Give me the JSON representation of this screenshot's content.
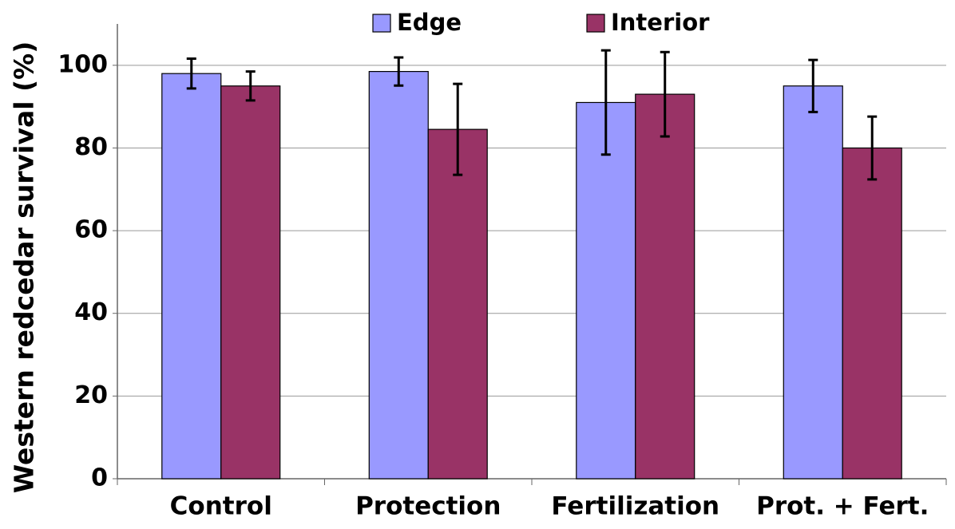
{
  "chart_data": {
    "type": "bar",
    "y_label": "Western redcedar survival (%)",
    "categories": [
      "Control",
      "Protection",
      "Fertilization",
      "Prot. + Fert."
    ],
    "series": [
      {
        "name": "Edge",
        "color": "#9999ff",
        "values": [
          98,
          98.5,
          91,
          95
        ],
        "errors": [
          3.6,
          3.4,
          12.6,
          6.3
        ]
      },
      {
        "name": "Interior",
        "color": "#993366",
        "values": [
          95,
          84.5,
          93,
          80
        ],
        "errors": [
          3.5,
          11,
          10.2,
          7.6
        ]
      }
    ],
    "ylim": [
      0,
      110
    ],
    "yticks": [
      0,
      20,
      40,
      60,
      80,
      100
    ],
    "grid": true
  }
}
